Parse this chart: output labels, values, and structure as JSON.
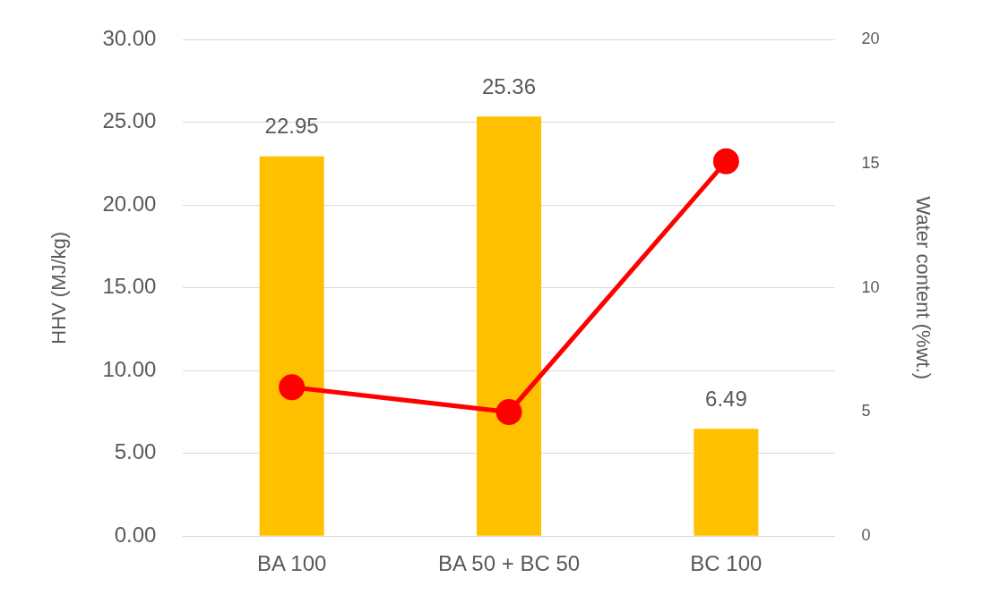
{
  "chart_data": {
    "type": "bar",
    "categories": [
      "BA 100",
      "BA 50 + BC 50",
      "BC 100"
    ],
    "ylabel": "HHV (MJ/kg)",
    "y2label": "Water content (%wt.)",
    "series": [
      {
        "color": "#ffc000",
        "values": [
          22.95,
          25.36,
          6.49
        ],
        "value_labels": [
          "22.95",
          "25.36",
          "6.49"
        ]
      },
      {
        "type": "line",
        "axis": "y2",
        "color": "#ff0000",
        "values": [
          6.0,
          5.0,
          15.1
        ]
      }
    ],
    "ylim": [
      0,
      30
    ],
    "yticks": [
      {
        "value": 0,
        "label": "0.00"
      },
      {
        "value": 5,
        "label": "5.00"
      },
      {
        "value": 10,
        "label": "10.00"
      },
      {
        "value": 15,
        "label": "15.00"
      },
      {
        "value": 20,
        "label": "20.00"
      },
      {
        "value": 25,
        "label": "25.00"
      },
      {
        "value": 30,
        "label": "30.00"
      }
    ],
    "y2lim": [
      0,
      20
    ],
    "y2ticks": [
      0,
      5,
      10,
      15,
      20
    ],
    "grid": "y",
    "legend": false,
    "marker": "circle",
    "line_style": "solid"
  }
}
